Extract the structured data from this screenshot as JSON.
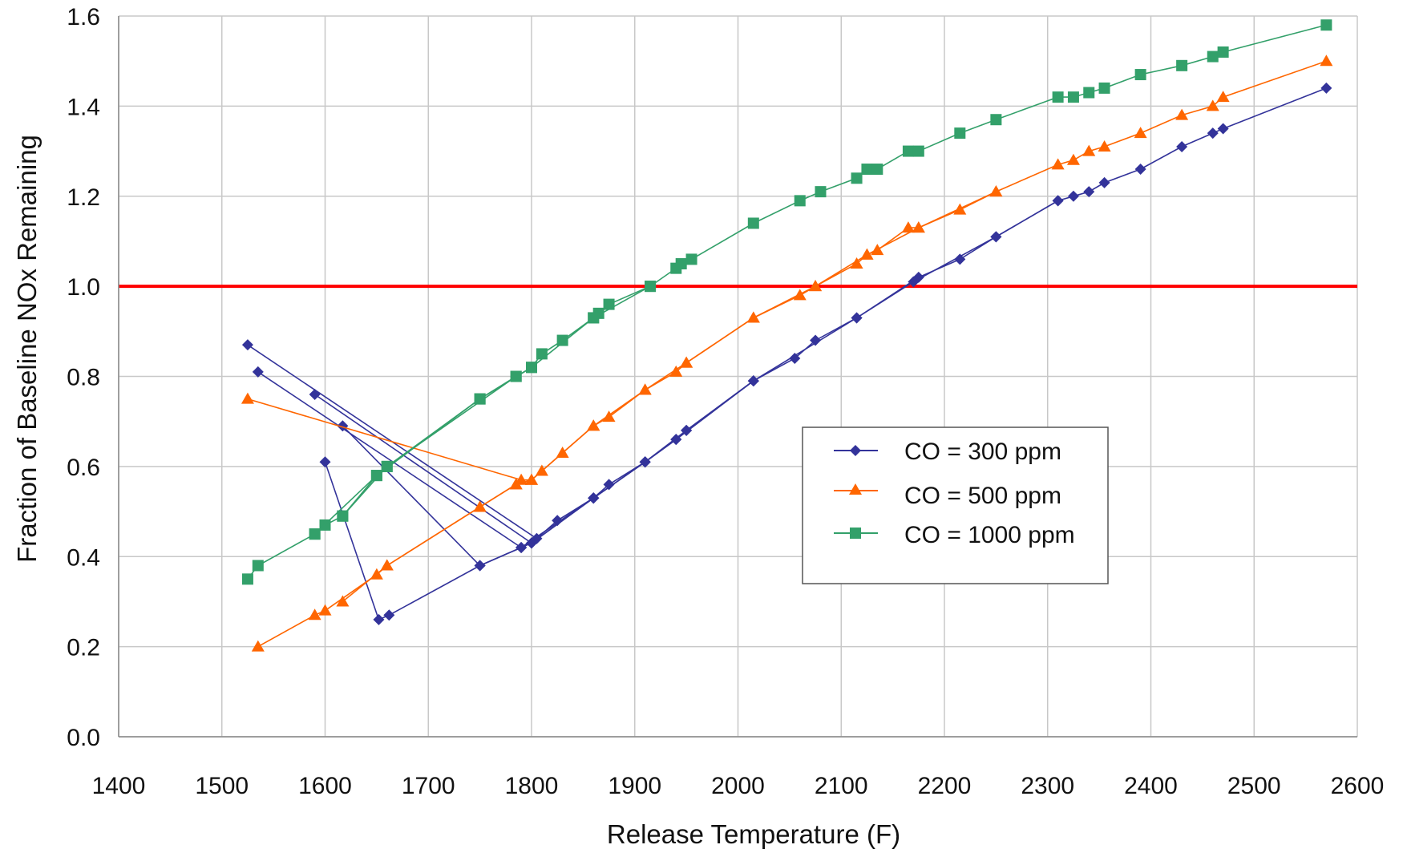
{
  "chart_data": {
    "type": "line",
    "title": "",
    "xlabel": "Release Temperature (F)",
    "ylabel": "Fraction of Baseline NOx Remaining",
    "xlim": [
      1400,
      2600
    ],
    "ylim": [
      0.0,
      1.6
    ],
    "x_ticks": [
      "1400",
      "1500",
      "1600",
      "1700",
      "1800",
      "1900",
      "2000",
      "2100",
      "2200",
      "2300",
      "2400",
      "2500",
      "2600"
    ],
    "y_ticks": [
      "0.0",
      "0.2",
      "0.4",
      "0.6",
      "0.8",
      "1.0",
      "1.2",
      "1.4",
      "1.6"
    ],
    "grid": true,
    "legend": "center-right",
    "reference_line": {
      "y": 1.0,
      "color": "#ff0000"
    },
    "series": [
      {
        "name": "CO = 300 ppm",
        "color": "#33339a",
        "marker": "diamond",
        "points": [
          [
            1525,
            0.87
          ],
          [
            1805,
            0.44
          ],
          [
            1825,
            0.48
          ],
          [
            1860,
            0.53
          ],
          [
            1875,
            0.56
          ],
          [
            1910,
            0.61
          ],
          [
            1940,
            0.66
          ],
          [
            1950,
            0.68
          ],
          [
            2015,
            0.79
          ],
          [
            2055,
            0.84
          ],
          [
            2075,
            0.88
          ],
          [
            2115,
            0.93
          ],
          [
            2175,
            1.02
          ],
          [
            2215,
            1.06
          ],
          [
            2250,
            1.11
          ],
          [
            2310,
            1.19
          ],
          [
            2325,
            1.2
          ],
          [
            2340,
            1.21
          ],
          [
            2355,
            1.23
          ],
          [
            2390,
            1.26
          ],
          [
            2430,
            1.31
          ],
          [
            2460,
            1.34
          ],
          [
            2470,
            1.35
          ],
          [
            2570,
            1.44
          ]
        ]
      },
      {
        "name": "CO = 300 ppm",
        "color": "#33339a",
        "marker": "diamond",
        "points": [
          [
            1535,
            0.81
          ],
          [
            1790,
            0.42
          ],
          [
            1800,
            0.43
          ],
          [
            1860,
            0.53
          ],
          [
            1910,
            0.61
          ],
          [
            1950,
            0.68
          ],
          [
            2015,
            0.79
          ],
          [
            2115,
            0.93
          ],
          [
            2170,
            1.01
          ],
          [
            2250,
            1.11
          ],
          [
            2310,
            1.19
          ]
        ]
      },
      {
        "name": "CO = 300 ppm",
        "color": "#33339a",
        "marker": "diamond",
        "points": [
          [
            1590,
            0.76
          ],
          [
            1800,
            0.43
          ],
          [
            1860,
            0.53
          ],
          [
            1910,
            0.61
          ],
          [
            1940,
            0.66
          ],
          [
            2015,
            0.79
          ]
        ]
      },
      {
        "name": "CO = 300 ppm",
        "color": "#33339a",
        "marker": "diamond",
        "points": [
          [
            1617,
            0.69
          ],
          [
            1750,
            0.38
          ],
          [
            1790,
            0.42
          ],
          [
            1860,
            0.53
          ],
          [
            1910,
            0.61
          ]
        ]
      },
      {
        "name": "CO = 300 ppm",
        "color": "#33339a",
        "marker": "diamond",
        "points": [
          [
            1600,
            0.61
          ],
          [
            1652,
            0.26
          ],
          [
            1662,
            0.27
          ],
          [
            1750,
            0.38
          ],
          [
            1790,
            0.42
          ],
          [
            1860,
            0.53
          ]
        ]
      },
      {
        "name": "CO = 500 ppm",
        "color": "#ff6600",
        "marker": "triangle",
        "points": [
          [
            1525,
            0.75
          ],
          [
            1790,
            0.57
          ],
          [
            1800,
            0.57
          ],
          [
            1810,
            0.59
          ],
          [
            1830,
            0.63
          ],
          [
            1860,
            0.69
          ],
          [
            1875,
            0.71
          ],
          [
            1910,
            0.77
          ],
          [
            1940,
            0.81
          ],
          [
            1950,
            0.83
          ],
          [
            2015,
            0.93
          ],
          [
            2060,
            0.98
          ],
          [
            2075,
            1.0
          ],
          [
            2115,
            1.05
          ],
          [
            2125,
            1.07
          ],
          [
            2135,
            1.08
          ],
          [
            2165,
            1.13
          ],
          [
            2175,
            1.13
          ],
          [
            2215,
            1.17
          ],
          [
            2250,
            1.21
          ],
          [
            2310,
            1.27
          ],
          [
            2325,
            1.28
          ],
          [
            2340,
            1.3
          ],
          [
            2355,
            1.31
          ],
          [
            2390,
            1.34
          ],
          [
            2430,
            1.38
          ],
          [
            2460,
            1.4
          ],
          [
            2470,
            1.42
          ],
          [
            2570,
            1.5
          ]
        ]
      },
      {
        "name": "CO = 500 ppm",
        "color": "#ff6600",
        "marker": "triangle",
        "points": [
          [
            1535,
            0.2
          ],
          [
            1590,
            0.27
          ],
          [
            1600,
            0.28
          ],
          [
            1650,
            0.36
          ],
          [
            1660,
            0.38
          ],
          [
            1750,
            0.51
          ],
          [
            1785,
            0.56
          ],
          [
            1800,
            0.57
          ],
          [
            1860,
            0.69
          ],
          [
            1910,
            0.77
          ],
          [
            1950,
            0.83
          ],
          [
            2015,
            0.93
          ],
          [
            2075,
            1.0
          ],
          [
            2125,
            1.07
          ],
          [
            2175,
            1.13
          ],
          [
            2250,
            1.21
          ]
        ]
      },
      {
        "name": "CO = 500 ppm",
        "color": "#ff6600",
        "marker": "triangle",
        "points": [
          [
            1617,
            0.3
          ],
          [
            1660,
            0.38
          ],
          [
            1750,
            0.51
          ],
          [
            1785,
            0.56
          ]
        ]
      },
      {
        "name": "CO = 1000 ppm",
        "color": "#33a06a",
        "marker": "square",
        "points": [
          [
            1525,
            0.35
          ],
          [
            1535,
            0.38
          ],
          [
            1590,
            0.45
          ],
          [
            1600,
            0.47
          ],
          [
            1617,
            0.49
          ],
          [
            1650,
            0.58
          ],
          [
            1660,
            0.6
          ],
          [
            1750,
            0.75
          ],
          [
            1785,
            0.8
          ],
          [
            1800,
            0.82
          ],
          [
            1810,
            0.85
          ],
          [
            1830,
            0.88
          ],
          [
            1860,
            0.93
          ],
          [
            1865,
            0.94
          ],
          [
            1875,
            0.96
          ],
          [
            1915,
            1.0
          ],
          [
            1940,
            1.04
          ],
          [
            1945,
            1.05
          ],
          [
            1955,
            1.06
          ],
          [
            2015,
            1.14
          ],
          [
            2060,
            1.19
          ],
          [
            2080,
            1.21
          ],
          [
            2115,
            1.24
          ],
          [
            2125,
            1.26
          ],
          [
            2135,
            1.26
          ],
          [
            2165,
            1.3
          ],
          [
            2175,
            1.3
          ],
          [
            2215,
            1.34
          ],
          [
            2250,
            1.37
          ],
          [
            2310,
            1.42
          ],
          [
            2325,
            1.42
          ],
          [
            2340,
            1.43
          ],
          [
            2355,
            1.44
          ],
          [
            2390,
            1.47
          ],
          [
            2430,
            1.49
          ],
          [
            2460,
            1.51
          ],
          [
            2470,
            1.52
          ],
          [
            2570,
            1.58
          ]
        ]
      },
      {
        "name": "CO = 1000 ppm",
        "color": "#33a06a",
        "marker": "square",
        "points": [
          [
            1590,
            0.45
          ],
          [
            1650,
            0.58
          ],
          [
            1750,
            0.75
          ],
          [
            1800,
            0.82
          ],
          [
            1860,
            0.93
          ],
          [
            1915,
            1.0
          ]
        ]
      },
      {
        "name": "CO = 1000 ppm",
        "color": "#33a06a",
        "marker": "square",
        "points": [
          [
            1617,
            0.49
          ],
          [
            1660,
            0.6
          ],
          [
            1785,
            0.8
          ]
        ]
      }
    ],
    "legend_entries": [
      {
        "label": "CO = 300 ppm",
        "color": "#33339a",
        "marker": "diamond"
      },
      {
        "label": "CO = 500 ppm",
        "color": "#ff6600",
        "marker": "triangle"
      },
      {
        "label": "CO = 1000 ppm",
        "color": "#33a06a",
        "marker": "square"
      }
    ]
  }
}
